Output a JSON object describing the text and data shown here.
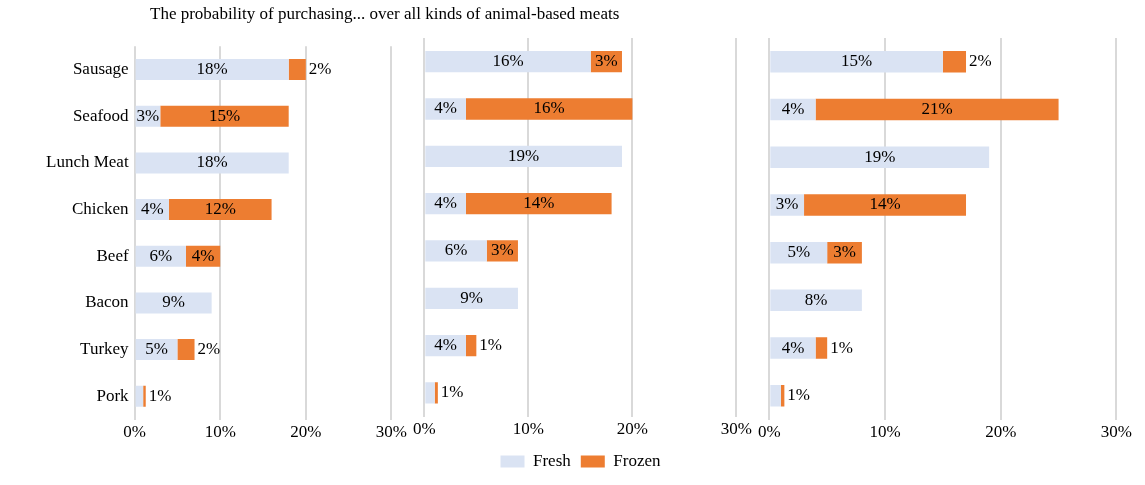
{
  "chart_data": [
    {
      "type": "bar",
      "orientation": "horizontal",
      "stacked": true,
      "title": "The probability of purchasing... over all kinds of animal-based meats",
      "categories": [
        "Sausage",
        "Seafood",
        "Lunch Meat",
        "Chicken",
        "Beef",
        "Bacon",
        "Turkey",
        "Pork"
      ],
      "xlim": [
        0,
        30
      ],
      "xticks": [
        {
          "value": 0,
          "label": "0%"
        },
        {
          "value": 10,
          "label": "10%"
        },
        {
          "value": 20,
          "label": "20%"
        },
        {
          "value": 30,
          "label": "30%"
        }
      ],
      "grid": "x",
      "legend": false,
      "series": [
        {
          "color": "#dae3f3",
          "values": [
            18,
            3,
            18,
            4,
            6,
            9,
            5,
            1
          ],
          "value_labels": [
            "18%",
            "3%",
            "18%",
            "4%",
            "6%",
            "9%",
            "5%",
            "1%"
          ]
        },
        {
          "color": "#ed7d31",
          "values": [
            2,
            15,
            null,
            12,
            4,
            null,
            2,
            0.3
          ],
          "value_labels": [
            "2%",
            "15%",
            null,
            "12%",
            "4%",
            null,
            "2%",
            null
          ]
        }
      ]
    },
    {
      "type": "bar",
      "orientation": "horizontal",
      "stacked": true,
      "tick_labels": "x",
      "categories": [
        null,
        null,
        null,
        null,
        null,
        null,
        null,
        null
      ],
      "xlim": [
        0,
        30
      ],
      "xticks": [
        {
          "value": 0,
          "label": "0%"
        },
        {
          "value": 10,
          "label": "10%"
        },
        {
          "value": 20,
          "label": "20%"
        },
        {
          "value": 30,
          "label": "30%"
        }
      ],
      "grid": "x",
      "legend": "bottom",
      "series": [
        {
          "name": "Fresh",
          "color": "#dae3f3",
          "values": [
            16,
            4,
            19,
            4,
            6,
            9,
            4,
            1
          ],
          "value_labels": [
            "16%",
            "4%",
            "19%",
            "4%",
            "6%",
            "9%",
            "4%",
            "1%"
          ]
        },
        {
          "name": "Frozen",
          "color": "#ed7d31",
          "values": [
            3,
            16,
            null,
            14,
            3,
            null,
            1,
            0.3
          ],
          "value_labels": [
            "3%",
            "16%",
            null,
            "14%",
            "3%",
            null,
            "1%",
            null
          ]
        }
      ]
    },
    {
      "type": "bar",
      "orientation": "horizontal",
      "stacked": true,
      "tick_labels": "x",
      "categories": [
        null,
        null,
        null,
        null,
        null,
        null,
        null,
        null
      ],
      "xlim": [
        0,
        30
      ],
      "xticks": [
        {
          "value": 0,
          "label": "0%"
        },
        {
          "value": 10,
          "label": "10%"
        },
        {
          "value": 20,
          "label": "20%"
        },
        {
          "value": 30,
          "label": "30%"
        }
      ],
      "grid": "x",
      "legend": false,
      "series": [
        {
          "color": "#dae3f3",
          "values": [
            15,
            4,
            19,
            3,
            5,
            8,
            4,
            1
          ],
          "value_labels": [
            "15%",
            "4%",
            "19%",
            "3%",
            "5%",
            "8%",
            "4%",
            "1%"
          ]
        },
        {
          "color": "#ed7d31",
          "values": [
            2,
            21,
            null,
            14,
            3,
            null,
            1,
            0.3
          ],
          "value_labels": [
            "2%",
            "21%",
            null,
            "14%",
            "3%",
            null,
            "1%",
            null
          ]
        }
      ]
    }
  ]
}
